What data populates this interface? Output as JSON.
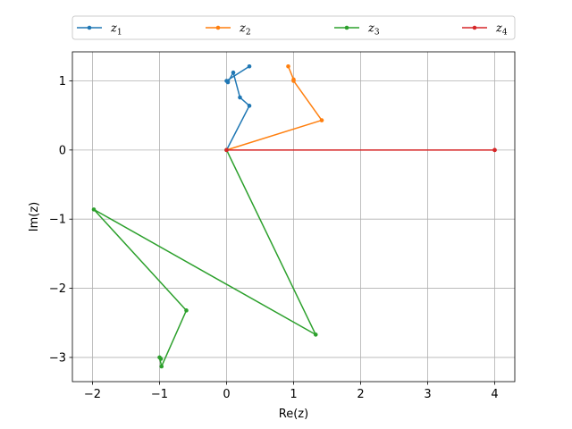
{
  "chart_data": {
    "type": "line",
    "title": "",
    "xlabel": "Re(z)",
    "ylabel": "Im(z)",
    "xlim": [
      -2.3,
      4.3
    ],
    "ylim": [
      -3.35,
      1.42
    ],
    "xticks": [
      -2,
      -1,
      0,
      1,
      2,
      3,
      4
    ],
    "yticks": [
      -3,
      -2,
      -1,
      0,
      1
    ],
    "xtick_labels": [
      "−2",
      "−1",
      "0",
      "1",
      "2",
      "3",
      "4"
    ],
    "ytick_labels": [
      "−3",
      "−2",
      "−1",
      "0",
      "1"
    ],
    "grid": true,
    "legend_position": "top, outside plot, single row",
    "series": [
      {
        "name": "z",
        "subscript": "1",
        "color": "#1f77b4",
        "points": [
          [
            0.0,
            0.0
          ],
          [
            0.34,
            0.64
          ],
          [
            0.2,
            0.76
          ],
          [
            0.1,
            1.12
          ],
          [
            0.02,
            0.98
          ],
          [
            0.0,
            1.0
          ],
          [
            0.34,
            1.21
          ]
        ]
      },
      {
        "name": "z",
        "subscript": "2",
        "color": "#ff7f0e",
        "points": [
          [
            0.0,
            0.0
          ],
          [
            1.42,
            0.43
          ],
          [
            1.0,
            1.0
          ],
          [
            1.0,
            1.02
          ],
          [
            0.92,
            1.21
          ]
        ]
      },
      {
        "name": "z",
        "subscript": "3",
        "color": "#2ca02c",
        "points": [
          [
            0.0,
            0.0
          ],
          [
            1.33,
            -2.67
          ],
          [
            -1.98,
            -0.86
          ],
          [
            -0.6,
            -2.32
          ],
          [
            -0.97,
            -3.13
          ],
          [
            -1.0,
            -3.0
          ],
          [
            -0.98,
            -3.02
          ]
        ]
      },
      {
        "name": "z",
        "subscript": "4",
        "color": "#d62728",
        "points": [
          [
            0.0,
            0.0
          ],
          [
            4.0,
            0.0
          ],
          [
            4.0,
            0.0
          ]
        ]
      }
    ]
  }
}
